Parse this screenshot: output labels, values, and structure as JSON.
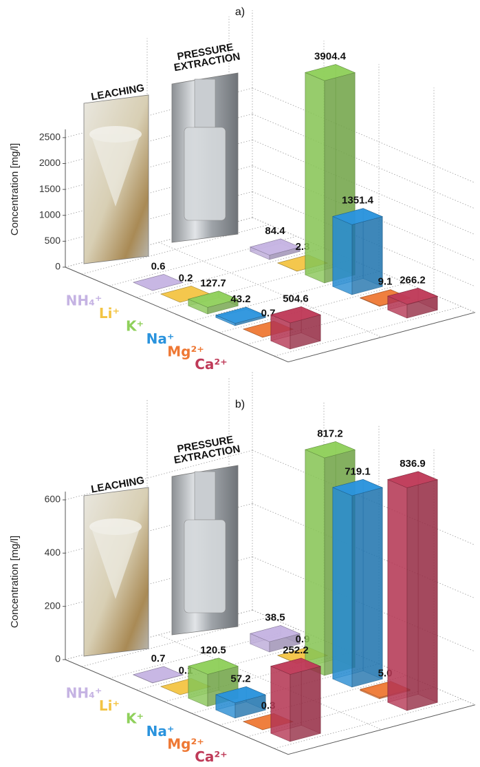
{
  "chart_data": [
    {
      "type": "bar3d",
      "title": "a)",
      "ylabel": "Concentration [mg/l]",
      "categories": [
        "NH₄⁺",
        "Li⁺",
        "K⁺",
        "Na⁺",
        "Mg²⁺",
        "Ca²⁺"
      ],
      "category_colors": [
        "#c5b3e3",
        "#f3c443",
        "#8fd05b",
        "#2a93dd",
        "#ee7834",
        "#bf3a58"
      ],
      "series": [
        {
          "name": "LEACHING",
          "values": [
            0.6,
            0.2,
            127.7,
            43.2,
            0.7,
            504.6
          ]
        },
        {
          "name": "PRESSURE EXTRACTION",
          "values": [
            84.4,
            2.3,
            3904.4,
            1351.4,
            9.1,
            266.2
          ]
        }
      ],
      "ylim": [
        0,
        4000
      ],
      "yticks": [
        0,
        500,
        1000,
        1500,
        2000,
        2500
      ],
      "grid": true
    },
    {
      "type": "bar3d",
      "title": "b)",
      "ylabel": "Concentration [mg/l]",
      "categories": [
        "NH₄⁺",
        "Li⁺",
        "K⁺",
        "Na⁺",
        "Mg²⁺",
        "Ca²⁺"
      ],
      "category_colors": [
        "#c5b3e3",
        "#f3c443",
        "#8fd05b",
        "#2a93dd",
        "#ee7834",
        "#bf3a58"
      ],
      "series": [
        {
          "name": "LEACHING",
          "values": [
            0.7,
            0.1,
            120.5,
            57.2,
            0.3,
            252.2
          ]
        },
        {
          "name": "PRESSURE EXTRACTION",
          "values": [
            38.5,
            0.9,
            817.2,
            719.1,
            5.0,
            836.9
          ],
          "value_labels": [
            "38.5",
            "0.9",
            "817.2",
            "719.1",
            "5.0",
            "836.9"
          ]
        }
      ],
      "ylim": [
        0,
        900
      ],
      "yticks": [
        0,
        200,
        400,
        600
      ],
      "grid": true
    }
  ]
}
